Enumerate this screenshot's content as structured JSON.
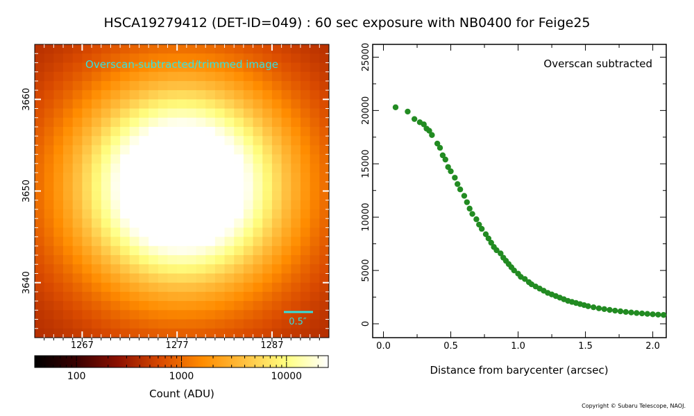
{
  "header": {
    "title": "HSCA19279412 (DET-ID=049) :  60 sec exposure with NB0400 for Feige25"
  },
  "footer": {
    "copyright": "Copyright © Subaru Telescope, NAOJ."
  },
  "colors": {
    "series": "#228b22",
    "annotation": "#33e0e0",
    "cmap_stops": [
      "#000000",
      "#3a0000",
      "#8c1000",
      "#d94a00",
      "#ff8c00",
      "#ffc040",
      "#ffff80",
      "#ffffff"
    ]
  },
  "chart_data": [
    {
      "type": "heatmap",
      "label": "Overscan-subtracted/trimmed image",
      "scale_bar_label": "0.5″",
      "x_ticks": [
        "1267",
        "1277",
        "1287"
      ],
      "y_ticks": [
        "3660",
        "3650",
        "3640"
      ],
      "x_range": [
        1262,
        1293
      ],
      "y_range": [
        3634,
        3666
      ],
      "colorbar": {
        "scale": "log",
        "range": [
          40,
          25000
        ],
        "ticks": [
          "100",
          "1000",
          "10000"
        ],
        "label": "Count (ADU)"
      }
    },
    {
      "type": "scatter",
      "annotation": "Overscan subtracted",
      "xlabel": "Distance from barycenter (arcsec)",
      "ylabel": "",
      "xlim": [
        -0.08,
        2.1
      ],
      "ylim": [
        -1300,
        26200
      ],
      "x_ticks": [
        "0.0",
        "0.5",
        "1.0",
        "1.5",
        "2.0"
      ],
      "y_ticks": [
        "0",
        "5000",
        "10000",
        "15000",
        "20000",
        "25000"
      ],
      "grid": false,
      "series": [
        {
          "x": [
            0.09,
            0.18,
            0.23,
            0.27,
            0.3,
            0.32,
            0.36,
            0.34,
            0.4,
            0.42,
            0.44,
            0.46,
            0.48,
            0.5,
            0.53,
            0.55,
            0.57,
            0.6,
            0.62,
            0.64,
            0.66,
            0.69,
            0.71,
            0.73,
            0.76,
            0.78,
            0.8,
            0.82,
            0.84,
            0.87,
            0.89,
            0.91,
            0.93,
            0.95,
            0.97,
            1.0,
            1.02,
            1.05,
            1.08,
            1.1,
            1.13,
            1.16,
            1.19,
            1.22,
            1.25,
            1.28,
            1.31,
            1.34,
            1.37,
            1.4,
            1.43,
            1.46,
            1.49,
            1.52,
            1.56,
            1.6,
            1.64,
            1.68,
            1.72,
            1.76,
            1.8,
            1.84,
            1.88,
            1.92,
            1.96,
            2.0,
            2.04,
            2.08
          ],
          "y": [
            20300,
            19900,
            19200,
            18900,
            18700,
            18300,
            17700,
            18100,
            16900,
            16500,
            15800,
            15400,
            14700,
            14300,
            13700,
            13100,
            12600,
            12000,
            11400,
            10800,
            10300,
            9800,
            9300,
            8900,
            8400,
            8000,
            7600,
            7200,
            6900,
            6600,
            6200,
            5900,
            5600,
            5300,
            5000,
            4700,
            4400,
            4200,
            3900,
            3700,
            3500,
            3300,
            3100,
            2900,
            2750,
            2600,
            2450,
            2300,
            2150,
            2050,
            1950,
            1850,
            1750,
            1650,
            1550,
            1450,
            1380,
            1300,
            1230,
            1170,
            1110,
            1060,
            1010,
            970,
            930,
            890,
            860,
            830
          ]
        }
      ]
    }
  ]
}
